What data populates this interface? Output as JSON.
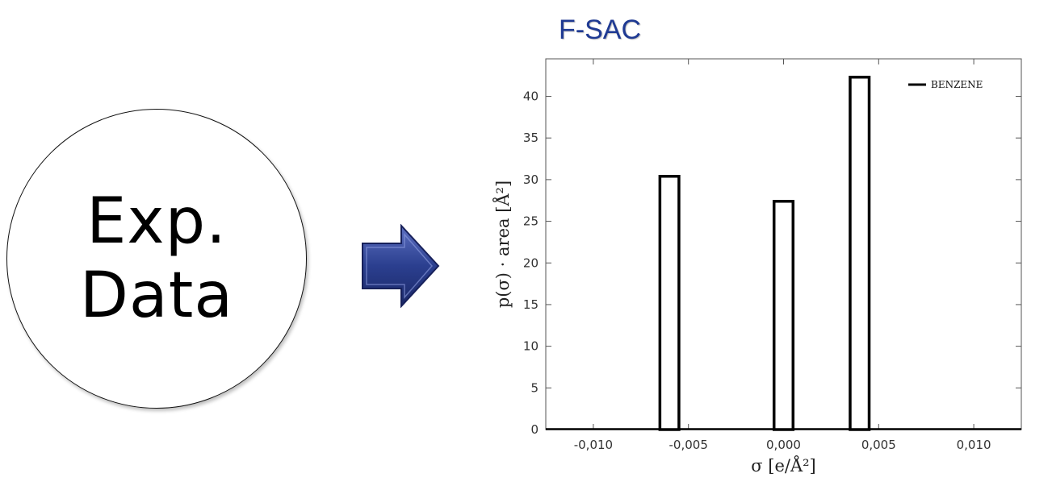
{
  "left_box": {
    "line1": "Exp.",
    "line2": "Data"
  },
  "chart_title": "F-SAC",
  "arrow_icon": "right-arrow-icon",
  "colors": {
    "arrow": "#2b3f8f",
    "title": "#1f3a93"
  },
  "chart_data": {
    "type": "bar",
    "x": [
      -0.006,
      0.0,
      0.004
    ],
    "values": [
      30.4,
      27.4,
      42.3
    ],
    "bar_width": 0.001,
    "series": [
      {
        "name": "BENZENE",
        "values": [
          30.4,
          27.4,
          42.3
        ]
      }
    ],
    "xlabel": "σ [e/Å²]",
    "ylabel": "p(σ) · area [Å²]",
    "xlim": [
      -0.0125,
      0.0125
    ],
    "ylim": [
      0,
      44.5
    ],
    "xticks": [
      -0.01,
      -0.005,
      0.0,
      0.005,
      0.01
    ],
    "xtick_labels": [
      "-0,010",
      "-0,005",
      "0,000",
      "0,005",
      "0,010"
    ],
    "yticks": [
      0,
      5,
      10,
      15,
      20,
      25,
      30,
      35,
      40
    ],
    "ytick_labels": [
      "0",
      "5",
      "10",
      "15",
      "20",
      "25",
      "30",
      "35",
      "40"
    ],
    "legend": {
      "position": "top-right",
      "entries": [
        "BENZENE"
      ]
    },
    "grid": false
  }
}
